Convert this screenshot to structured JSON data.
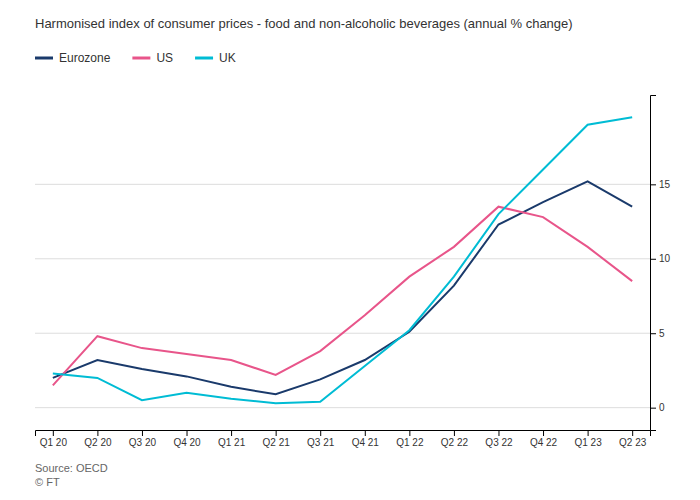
{
  "chart_data": {
    "type": "line",
    "title": "Harmonised index of consumer prices - food and non-alcoholic beverages (annual % change)",
    "categories": [
      "Q1 20",
      "Q2 20",
      "Q3 20",
      "Q4 20",
      "Q1 21",
      "Q2 21",
      "Q3 21",
      "Q4 21",
      "Q1 22",
      "Q2 22",
      "Q3 22",
      "Q4 22",
      "Q1 23",
      "Q2 23"
    ],
    "series": [
      {
        "name": "Eurozone",
        "color": "#1a3a6b",
        "values": [
          2.0,
          3.2,
          2.6,
          2.1,
          1.4,
          0.9,
          1.9,
          3.2,
          5.1,
          8.2,
          12.3,
          13.8,
          15.2,
          13.5
        ]
      },
      {
        "name": "US",
        "color": "#e8558a",
        "values": [
          1.5,
          4.8,
          4.0,
          3.6,
          3.2,
          2.2,
          3.8,
          6.2,
          8.8,
          10.8,
          13.5,
          12.8,
          10.8,
          8.5
        ]
      },
      {
        "name": "UK",
        "color": "#00bcd4",
        "values": [
          2.3,
          2.0,
          0.5,
          1.0,
          0.6,
          0.3,
          0.4,
          2.8,
          5.2,
          8.8,
          13.0,
          16.0,
          19.0,
          19.5
        ]
      }
    ],
    "ylim": [
      -1.5,
      21
    ],
    "yticks": [
      0,
      5,
      10,
      15
    ],
    "grid": true,
    "legend": "top-left",
    "annotations": [
      "Source: OECD",
      "© FT"
    ]
  }
}
